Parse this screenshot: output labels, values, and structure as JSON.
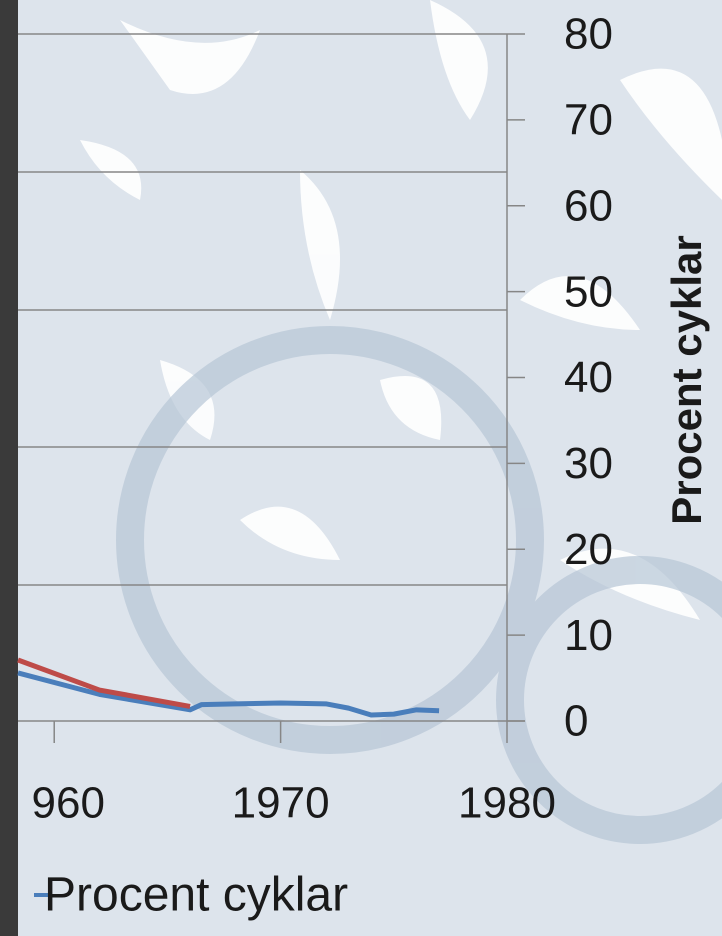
{
  "chart_data": {
    "type": "line",
    "y2_label": "Procent cyklar",
    "x": [
      1958.4,
      1962,
      1966,
      1966.5,
      1968,
      1970,
      1972,
      1973,
      1974,
      1975,
      1976,
      1977
    ],
    "xlim": [
      1958.4,
      1980
    ],
    "xticks": [
      {
        "value": 1960,
        "label": "960"
      },
      1970,
      1980
    ],
    "y2lim": [
      0,
      80
    ],
    "y2ticks": [
      0,
      10,
      20,
      30,
      40,
      50,
      60,
      70,
      80
    ],
    "series": [
      {
        "name": "Procent cyklar",
        "color": "#4a7ebb",
        "axis": "y2",
        "values": [
          5.6,
          3.1,
          1.3,
          1.9,
          2.0,
          2.1,
          2.0,
          1.5,
          0.7,
          0.8,
          1.3,
          1.2
        ]
      },
      {
        "color": "#be4b48",
        "axis": "y2",
        "values": [
          7.1,
          3.6,
          1.7,
          null,
          null,
          null,
          null,
          null,
          null,
          null,
          null,
          null
        ]
      }
    ]
  }
}
